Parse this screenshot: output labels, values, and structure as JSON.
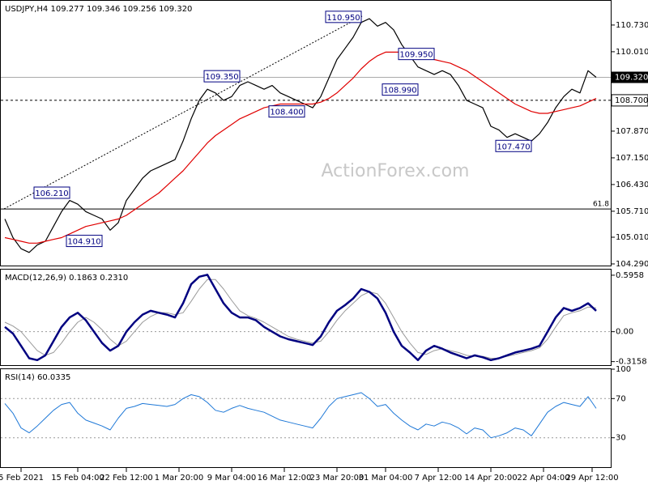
{
  "chart_data": [
    {
      "type": "line",
      "title": "USDJPY,H4  109.277 109.346 109.256 109.320",
      "watermark": "ActionForex.com",
      "xlim": [
        -0.5,
        74.5
      ],
      "ylim": [
        104.246,
        111.383
      ],
      "yticks": [
        {
          "value": 110.73,
          "label": "110.730"
        },
        {
          "value": 110.01,
          "label": "110.010"
        },
        {
          "value": 107.87,
          "label": "107.870"
        },
        {
          "value": 107.15,
          "label": "107.150"
        },
        {
          "value": 106.43,
          "label": "106.430"
        },
        {
          "value": 105.71,
          "label": "105.710"
        },
        {
          "value": 105.01,
          "label": "105.010"
        },
        {
          "value": 104.29,
          "label": "104.290"
        }
      ],
      "hlines": [
        {
          "value": 109.32,
          "label": "109.320",
          "style": "current"
        },
        {
          "value": 108.7,
          "label": "108.700",
          "style": "dashed"
        },
        {
          "value": 105.77,
          "label": "61.8",
          "style": "fib"
        }
      ],
      "annotations": [
        {
          "label": "110.950",
          "value": 110.95,
          "x": 44
        },
        {
          "label": "109.350",
          "value": 109.35,
          "x": 29
        },
        {
          "label": "106.210",
          "value": 106.21,
          "x": 8
        },
        {
          "label": "104.910",
          "value": 104.91,
          "x": 12
        },
        {
          "label": "108.400",
          "value": 108.4,
          "x": 37
        },
        {
          "label": "108.990",
          "value": 108.99,
          "x": 51
        },
        {
          "label": "109.950",
          "value": 109.95,
          "x": 53
        },
        {
          "label": "107.470",
          "value": 107.47,
          "x": 65
        }
      ],
      "series": [
        {
          "color": "#000000",
          "width": 1.2,
          "values": [
            105.5,
            105.0,
            104.7,
            104.6,
            104.8,
            104.9,
            105.3,
            105.7,
            106.0,
            105.9,
            105.7,
            105.6,
            105.5,
            105.2,
            105.4,
            106.0,
            106.3,
            106.6,
            106.8,
            106.9,
            107.0,
            107.1,
            107.6,
            108.2,
            108.7,
            109.0,
            108.9,
            108.7,
            108.8,
            109.1,
            109.2,
            109.1,
            109.0,
            109.1,
            108.9,
            108.8,
            108.7,
            108.6,
            108.5,
            108.8,
            109.3,
            109.8,
            110.1,
            110.4,
            110.8,
            110.9,
            110.7,
            110.8,
            110.6,
            110.2,
            109.9,
            109.6,
            109.5,
            109.4,
            109.5,
            109.4,
            109.1,
            108.7,
            108.6,
            108.5,
            108.0,
            107.9,
            107.7,
            107.8,
            107.7,
            107.6,
            107.8,
            108.1,
            108.5,
            108.8,
            109.0,
            108.9,
            109.5,
            109.32
          ]
        },
        {
          "color": "#e00000",
          "width": 1.2,
          "values": [
            105.0,
            104.95,
            104.9,
            104.85,
            104.85,
            104.9,
            104.95,
            105.0,
            105.1,
            105.2,
            105.3,
            105.35,
            105.4,
            105.45,
            105.5,
            105.6,
            105.75,
            105.9,
            106.05,
            106.2,
            106.4,
            106.6,
            106.8,
            107.05,
            107.3,
            107.55,
            107.75,
            107.9,
            108.05,
            108.2,
            108.3,
            108.4,
            108.5,
            108.55,
            108.6,
            108.6,
            108.6,
            108.6,
            108.6,
            108.65,
            108.75,
            108.9,
            109.1,
            109.3,
            109.55,
            109.75,
            109.9,
            110.0,
            110.0,
            110.0,
            109.95,
            109.9,
            109.85,
            109.8,
            109.75,
            109.7,
            109.6,
            109.5,
            109.35,
            109.2,
            109.05,
            108.9,
            108.75,
            108.6,
            108.5,
            108.4,
            108.35,
            108.35,
            108.4,
            108.45,
            108.5,
            108.55,
            108.65,
            108.75
          ]
        }
      ]
    },
    {
      "type": "line",
      "title": "MACD(12,26,9) 0.1863 0.2310",
      "xlim": [
        -0.5,
        74.5
      ],
      "ylim": [
        -0.353,
        0.655
      ],
      "yticks": [
        0.5958,
        {
          "value": 0,
          "label": "0.00"
        },
        -0.3158
      ],
      "dotted_levels": [
        0
      ],
      "series": [
        {
          "color": "#9a9a9a",
          "width": 1,
          "values": [
            0.1,
            0.06,
            0.0,
            -0.1,
            -0.2,
            -0.25,
            -0.22,
            -0.12,
            0.0,
            0.1,
            0.15,
            0.1,
            0.02,
            -0.08,
            -0.15,
            -0.1,
            0.0,
            0.1,
            0.16,
            0.2,
            0.2,
            0.18,
            0.2,
            0.32,
            0.45,
            0.55,
            0.55,
            0.45,
            0.33,
            0.22,
            0.17,
            0.14,
            0.1,
            0.05,
            0.0,
            -0.05,
            -0.08,
            -0.1,
            -0.12,
            -0.1,
            0.0,
            0.12,
            0.22,
            0.3,
            0.38,
            0.42,
            0.4,
            0.3,
            0.15,
            0.0,
            -0.12,
            -0.22,
            -0.24,
            -0.2,
            -0.18,
            -0.2,
            -0.22,
            -0.25,
            -0.26,
            -0.26,
            -0.28,
            -0.28,
            -0.26,
            -0.24,
            -0.22,
            -0.2,
            -0.17,
            -0.08,
            0.05,
            0.17,
            0.2,
            0.22,
            0.26,
            0.25
          ]
        },
        {
          "color": "#000080",
          "width": 2.5,
          "values": [
            0.05,
            -0.02,
            -0.15,
            -0.28,
            -0.3,
            -0.25,
            -0.1,
            0.05,
            0.15,
            0.2,
            0.12,
            0.0,
            -0.12,
            -0.2,
            -0.15,
            0.0,
            0.1,
            0.18,
            0.22,
            0.2,
            0.18,
            0.15,
            0.3,
            0.5,
            0.58,
            0.6,
            0.45,
            0.3,
            0.2,
            0.15,
            0.15,
            0.12,
            0.05,
            0.0,
            -0.05,
            -0.08,
            -0.1,
            -0.12,
            -0.14,
            -0.05,
            0.1,
            0.22,
            0.28,
            0.35,
            0.45,
            0.42,
            0.35,
            0.2,
            0.0,
            -0.15,
            -0.22,
            -0.3,
            -0.2,
            -0.15,
            -0.18,
            -0.22,
            -0.25,
            -0.28,
            -0.25,
            -0.27,
            -0.3,
            -0.28,
            -0.25,
            -0.22,
            -0.2,
            -0.18,
            -0.15,
            0.0,
            0.15,
            0.25,
            0.22,
            0.25,
            0.3,
            0.22
          ]
        }
      ]
    },
    {
      "type": "line",
      "title": "RSI(14) 60.0335",
      "xlim": [
        -0.5,
        74.5
      ],
      "ylim": [
        0,
        100
      ],
      "yticks": [
        100,
        70,
        30
      ],
      "dotted_levels": [
        70,
        30
      ],
      "xticks": [
        {
          "value": 2,
          "label": "5 Feb 2021"
        },
        {
          "value": 9,
          "label": "15 Feb 04:00"
        },
        {
          "value": 15,
          "label": "22 Feb 12:00"
        },
        {
          "value": 21.5,
          "label": "1 Mar 20:00"
        },
        {
          "value": 28,
          "label": "9 Mar 04:00"
        },
        {
          "value": 34.5,
          "label": "16 Mar 12:00"
        },
        {
          "value": 41,
          "label": "23 Mar 20:00"
        },
        {
          "value": 47,
          "label": "31 Mar 04:00"
        },
        {
          "value": 53.5,
          "label": "7 Apr 12:00"
        },
        {
          "value": 60,
          "label": "14 Apr 20:00"
        },
        {
          "value": 66.5,
          "label": "22 Apr 04:00"
        },
        {
          "value": 72.5,
          "label": "29 Apr 12:00"
        }
      ],
      "series": [
        {
          "color": "#1e78d7",
          "width": 1,
          "values": [
            65,
            55,
            40,
            35,
            42,
            50,
            58,
            64,
            66,
            55,
            48,
            45,
            42,
            38,
            50,
            60,
            62,
            65,
            64,
            63,
            62,
            64,
            70,
            74,
            72,
            66,
            58,
            56,
            60,
            63,
            60,
            58,
            56,
            52,
            48,
            46,
            44,
            42,
            40,
            50,
            62,
            70,
            72,
            74,
            76,
            70,
            62,
            64,
            55,
            48,
            42,
            38,
            44,
            42,
            46,
            44,
            40,
            34,
            40,
            38,
            30,
            32,
            35,
            40,
            38,
            32,
            44,
            56,
            62,
            66,
            64,
            62,
            72,
            60
          ]
        }
      ]
    }
  ]
}
